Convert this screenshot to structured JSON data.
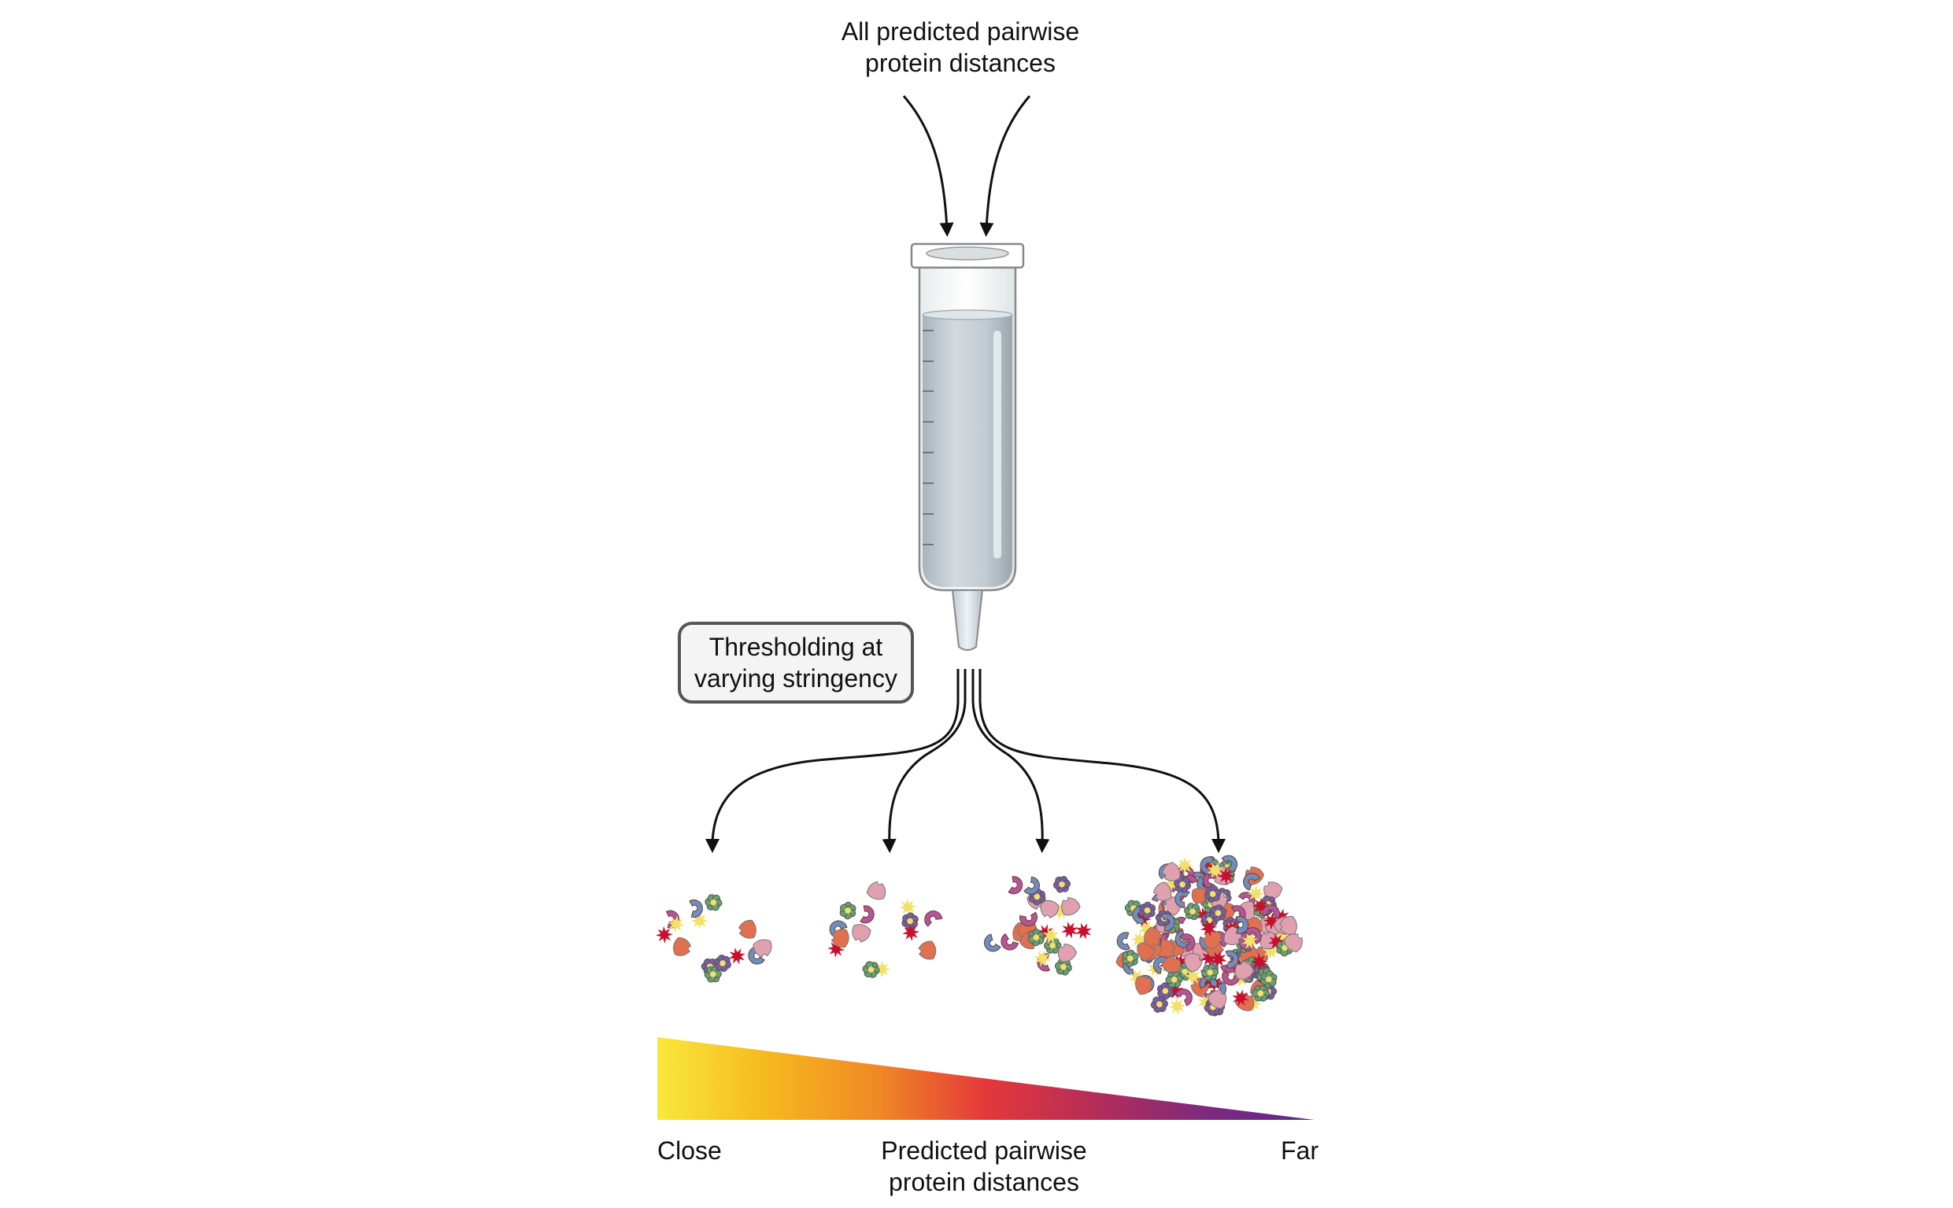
{
  "top_label": {
    "line1": "All predicted pairwise",
    "line2": "protein distances"
  },
  "threshold_box": {
    "line1": "Thresholding at",
    "line2": "varying stringency"
  },
  "gradient_axis": {
    "left_label": "Close",
    "right_label": "Far",
    "title_line1": "Predicted pairwise",
    "title_line2": "protein distances",
    "colors": [
      "#f9e83a",
      "#f6b81e",
      "#f08a24",
      "#e4383a",
      "#b62c58",
      "#7e2a7e",
      "#5c2a8c"
    ]
  },
  "clusters": [
    {
      "name": "cluster-close",
      "count": 14
    },
    {
      "name": "cluster-mid-close",
      "count": 14
    },
    {
      "name": "cluster-mid-far",
      "count": 26
    },
    {
      "name": "cluster-far",
      "count": 170
    }
  ],
  "protein_colors": [
    "#c8102e",
    "#7a5d9e",
    "#6a8fc0",
    "#e07050",
    "#f2e06a",
    "#6aa070",
    "#b0569c",
    "#e0a0b0"
  ]
}
